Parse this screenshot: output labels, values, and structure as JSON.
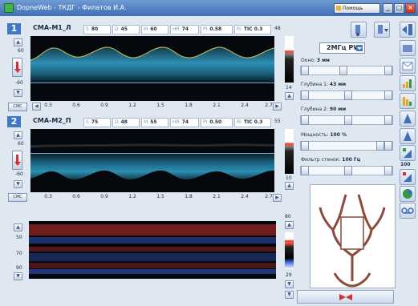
{
  "window": {
    "title": "DopneWeb - ТКДГ - Филатов И.А.",
    "help_label": "Помощь",
    "minimize": "_",
    "maximize": "□",
    "close": "×"
  },
  "channels": [
    {
      "number": "1",
      "name": "СМА-М1_Л",
      "params": [
        {
          "label": "S",
          "value": "80"
        },
        {
          "label": "D",
          "value": "45"
        },
        {
          "label": "M",
          "value": "60"
        },
        {
          "label": "HR",
          "value": "74"
        },
        {
          "label": "PI",
          "value": "0.58"
        },
        {
          "label": "RI",
          "value": "TIC 0.3"
        }
      ],
      "scale_top": "60",
      "scale_bottom": "-60",
      "right_scale_top": "48",
      "right_scale_bottom": "14",
      "ohs_label": "СМС"
    },
    {
      "number": "2",
      "name": "СМА-М2_П",
      "params": [
        {
          "label": "S",
          "value": "75"
        },
        {
          "label": "D",
          "value": "48"
        },
        {
          "label": "M",
          "value": "55"
        },
        {
          "label": "HR",
          "value": "74"
        },
        {
          "label": "PI",
          "value": "0.50"
        },
        {
          "label": "RI",
          "value": "TIC 0.3"
        }
      ],
      "scale_top": "60",
      "scale_bottom": "-60",
      "right_scale_top": "55",
      "right_scale_bottom": "10",
      "ohs_label": "СМС"
    }
  ],
  "time_axis": [
    "0.3",
    "0.6",
    "0.9",
    "1.2",
    "1.5",
    "1.8",
    "2.1",
    "2.4",
    "2.7"
  ],
  "mmode": {
    "left_scale": [
      "50",
      "70",
      "90"
    ],
    "right_scale_top": "80",
    "right_scale_bottom": "29"
  },
  "settings": {
    "mode": "2МГц PW",
    "window_label": "Окно:",
    "window_value": "3 мм",
    "depth1_label": "Глубина 1:",
    "depth1_value": "43 мм",
    "depth2_label": "Глубина 2:",
    "depth2_value": "90 мм",
    "power_label": "Мощность:",
    "power_value": "100 %",
    "filter_label": "Фильтр стенок:",
    "filter_value": "100 Гц"
  },
  "toolbar": {
    "gain_value": "100"
  },
  "icons": {
    "app": "app-icon",
    "help": "help-icon",
    "probe": "probe-icon",
    "probe_menu": "probe-menu-icon",
    "exit": "exit-icon",
    "arrow_up": "arrow-up-icon",
    "arrow_down": "arrow-down-icon",
    "play": "play-icon",
    "tape": "tape-icon"
  },
  "colors": {
    "accent": "#3f79c6",
    "spectrum_bg": "#05080d",
    "spectrum_glow": "#34a3c9",
    "mmode_red": "#c8322c",
    "mmode_blue": "#3c5ed6"
  }
}
